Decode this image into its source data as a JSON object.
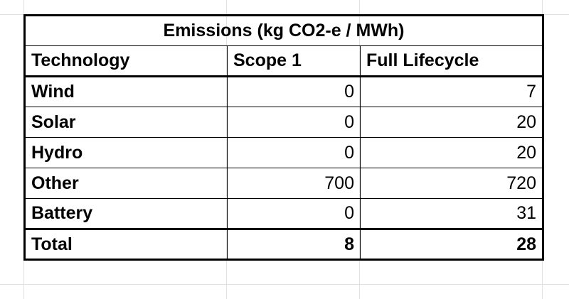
{
  "table": {
    "title": "Emissions (kg CO2-e / MWh)",
    "headers": [
      "Technology",
      "Scope 1",
      "Full Lifecycle"
    ],
    "rows": [
      [
        "Wind",
        0,
        7
      ],
      [
        "Solar",
        0,
        20
      ],
      [
        "Hydro",
        0,
        20
      ],
      [
        "Other",
        700,
        720
      ],
      [
        "Battery",
        0,
        31
      ]
    ],
    "total": [
      "Total",
      8,
      28
    ]
  }
}
